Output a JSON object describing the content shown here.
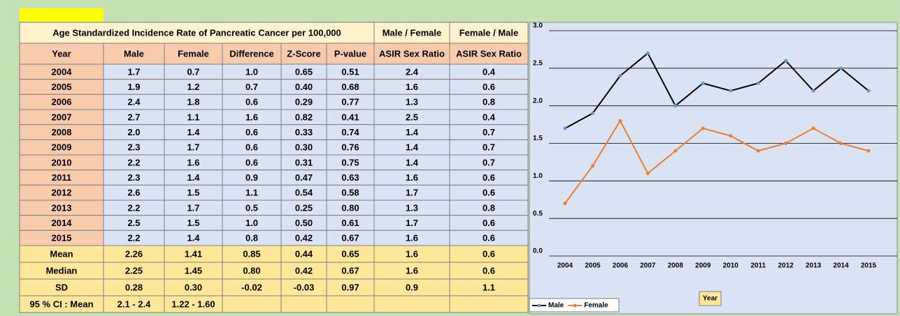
{
  "table": {
    "title_row": [
      "Age Standardized Incidence Rate of Pancreatic Cancer per 100,000",
      "Male / Female",
      "Female / Male"
    ],
    "header": [
      "Year",
      "Male",
      "Female",
      "Difference",
      "Z-Score",
      "P-value",
      "ASIR Sex Ratio",
      "ASIR Sex Ratio"
    ],
    "rows": [
      [
        "2004",
        "1.7",
        "0.7",
        "1.0",
        "0.65",
        "0.51",
        "2.4",
        "0.4"
      ],
      [
        "2005",
        "1.9",
        "1.2",
        "0.7",
        "0.40",
        "0.68",
        "1.6",
        "0.6"
      ],
      [
        "2006",
        "2.4",
        "1.8",
        "0.6",
        "0.29",
        "0.77",
        "1.3",
        "0.8"
      ],
      [
        "2007",
        "2.7",
        "1.1",
        "1.6",
        "0.82",
        "0.41",
        "2.5",
        "0.4"
      ],
      [
        "2008",
        "2.0",
        "1.4",
        "0.6",
        "0.33",
        "0.74",
        "1.4",
        "0.7"
      ],
      [
        "2009",
        "2.3",
        "1.7",
        "0.6",
        "0.30",
        "0.76",
        "1.4",
        "0.7"
      ],
      [
        "2010",
        "2.2",
        "1.6",
        "0.6",
        "0.31",
        "0.75",
        "1.4",
        "0.7"
      ],
      [
        "2011",
        "2.3",
        "1.4",
        "0.9",
        "0.47",
        "0.63",
        "1.6",
        "0.6"
      ],
      [
        "2012",
        "2.6",
        "1.5",
        "1.1",
        "0.54",
        "0.58",
        "1.7",
        "0.6"
      ],
      [
        "2013",
        "2.2",
        "1.7",
        "0.5",
        "0.25",
        "0.80",
        "1.3",
        "0.8"
      ],
      [
        "2014",
        "2.5",
        "1.5",
        "1.0",
        "0.50",
        "0.61",
        "1.7",
        "0.6"
      ],
      [
        "2015",
        "2.2",
        "1.4",
        "0.8",
        "0.42",
        "0.67",
        "1.6",
        "0.6"
      ],
      [
        "Mean",
        "2.26",
        "1.41",
        "0.85",
        "0.44",
        "0.65",
        "1.6",
        "0.6"
      ],
      [
        "Median",
        "2.25",
        "1.45",
        "0.80",
        "0.42",
        "0.67",
        "1.6",
        "0.6"
      ],
      [
        "SD",
        "0.28",
        "0.30",
        "-0.02",
        "-0.03",
        "0.97",
        "0.9",
        "1.1"
      ],
      [
        "95 % CI : Mean",
        "2.1 - 2.4",
        "1.22 - 1.60"
      ]
    ]
  },
  "chart_data": {
    "type": "line",
    "categories": [
      "2004",
      "2005",
      "2006",
      "2007",
      "2008",
      "2009",
      "2010",
      "2011",
      "2012",
      "2013",
      "2014",
      "2015"
    ],
    "series": [
      {
        "name": "Male",
        "color": "#000000",
        "marker_color": "#5b9bd5",
        "values": [
          1.7,
          1.9,
          2.4,
          2.7,
          2.0,
          2.3,
          2.2,
          2.3,
          2.6,
          2.2,
          2.5,
          2.2
        ]
      },
      {
        "name": "Female",
        "color": "#ed7d31",
        "marker_color": "#ed7d31",
        "values": [
          0.7,
          1.2,
          1.8,
          1.1,
          1.4,
          1.7,
          1.6,
          1.4,
          1.5,
          1.7,
          1.5,
          1.4
        ]
      }
    ],
    "x_label": "Year",
    "ylim": [
      0,
      3
    ],
    "yticks": [
      {
        "value": 0,
        "label": "0.0"
      },
      {
        "value": 0.5,
        "label": "0.5"
      },
      {
        "value": 1,
        "label": "1.0"
      },
      {
        "value": 1.5,
        "label": "1.5"
      },
      {
        "value": 2,
        "label": "2.0"
      },
      {
        "value": 2.5,
        "label": "2.5"
      },
      {
        "value": 3,
        "label": "3.0"
      }
    ],
    "grid": true,
    "legend": "bottom-left"
  }
}
